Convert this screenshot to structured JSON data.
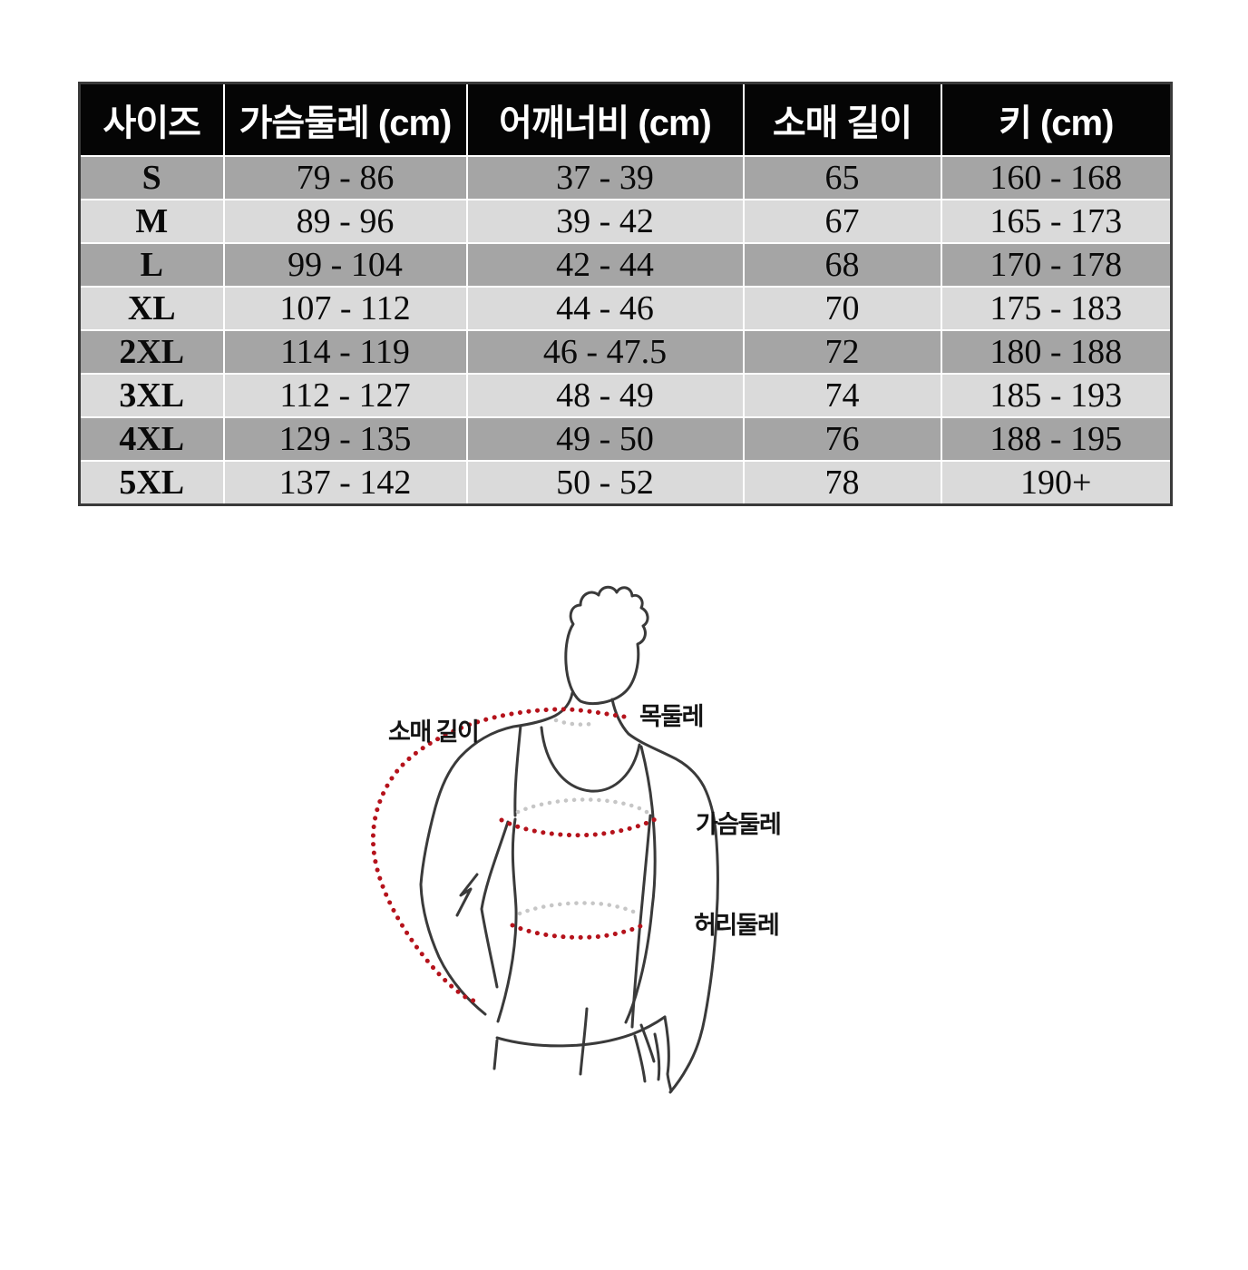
{
  "size_table": {
    "columns": [
      "사이즈",
      "가슴둘레 (cm)",
      "어깨너비 (cm)",
      "소매 길이",
      "키 (cm)"
    ],
    "rows": [
      [
        "S",
        "79 - 86",
        "37 - 39",
        "65",
        "160 - 168"
      ],
      [
        "M",
        "89 - 96",
        "39 - 42",
        "67",
        "165 - 173"
      ],
      [
        "L",
        "99 - 104",
        "42 - 44",
        "68",
        "170 - 178"
      ],
      [
        "XL",
        "107 - 112",
        "44 - 46",
        "70",
        "175 - 183"
      ],
      [
        "2XL",
        "114 - 119",
        "46 - 47.5",
        "72",
        "180 - 188"
      ],
      [
        "3XL",
        "112 - 127",
        "48 - 49",
        "74",
        "185 - 193"
      ],
      [
        "4XL",
        "129 - 135",
        "49 - 50",
        "76",
        "188 - 195"
      ],
      [
        "5XL",
        "137 - 142",
        "50 - 52",
        "78",
        "190+"
      ]
    ],
    "colors": {
      "header_bg": "#050505",
      "header_text": "#ffffff",
      "row_dark": "#a5a5a5",
      "row_light": "#dadada",
      "grid_line": "#ffffff",
      "outer_border": "#3a3a3a"
    }
  },
  "measurement_diagram": {
    "labels": {
      "sleeve_length": "소매 길이",
      "neck": "목둘레",
      "chest": "가슴둘레",
      "waist": "허리둘레"
    },
    "colors": {
      "outline": "#3a3a3a",
      "measure_dots": "#b5121b",
      "guide_dots": "#c6c6c6"
    }
  }
}
